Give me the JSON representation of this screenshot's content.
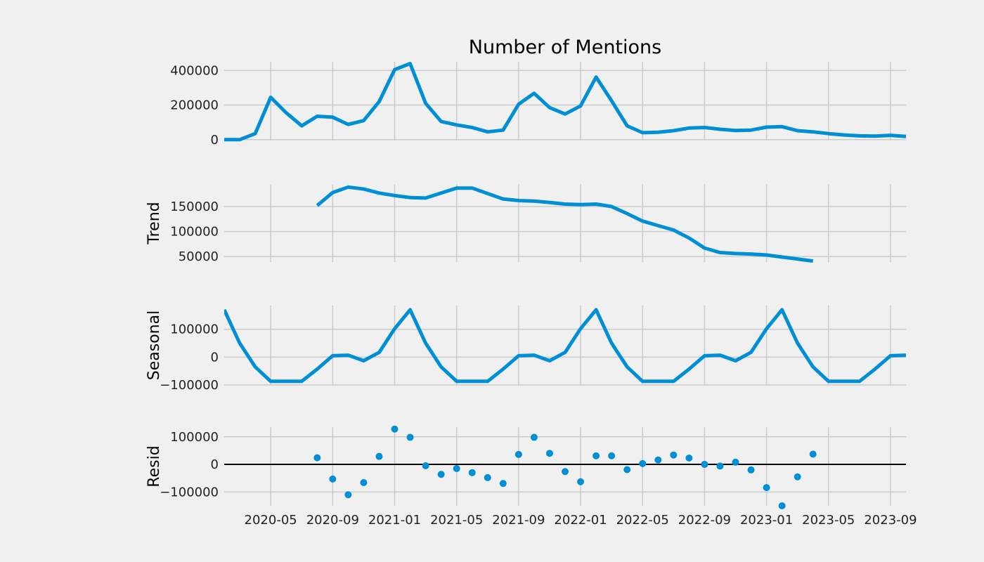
{
  "chart_data": {
    "type": "line",
    "title": "Number of Mentions",
    "x": [
      "2020-02",
      "2020-03",
      "2020-04",
      "2020-05",
      "2020-06",
      "2020-07",
      "2020-08",
      "2020-09",
      "2020-10",
      "2020-11",
      "2020-12",
      "2021-01",
      "2021-02",
      "2021-03",
      "2021-04",
      "2021-05",
      "2021-06",
      "2021-07",
      "2021-08",
      "2021-09",
      "2021-10",
      "2021-11",
      "2021-12",
      "2022-01",
      "2022-02",
      "2022-03",
      "2022-04",
      "2022-05",
      "2022-06",
      "2022-07",
      "2022-08",
      "2022-09",
      "2022-10",
      "2022-11",
      "2022-12",
      "2023-01",
      "2023-02",
      "2023-03",
      "2023-04",
      "2023-05",
      "2023-06",
      "2023-07",
      "2023-08",
      "2023-09",
      "2023-10"
    ],
    "x_ticks": [
      "2020-05",
      "2020-09",
      "2021-01",
      "2021-05",
      "2021-09",
      "2022-01",
      "2022-05",
      "2022-09",
      "2023-01",
      "2023-05",
      "2023-09"
    ],
    "line_color": "#008fd5",
    "panels": [
      {
        "name": "observed",
        "ylabel": "",
        "kind": "line",
        "ylim": [
          -5000,
          450000
        ],
        "yticks": [
          0,
          200000,
          400000
        ],
        "ytick_labels": [
          "0",
          "200000",
          "400000"
        ],
        "values": [
          0,
          0,
          35000,
          245000,
          155000,
          80000,
          135000,
          130000,
          88000,
          110000,
          220000,
          405000,
          440000,
          210000,
          105000,
          85000,
          70000,
          45000,
          55000,
          205000,
          268000,
          185000,
          148000,
          195000,
          362000,
          225000,
          80000,
          40000,
          43000,
          52000,
          67000,
          70000,
          60000,
          53000,
          55000,
          72000,
          75000,
          52000,
          45000,
          35000,
          27000,
          22000,
          20000,
          25000,
          18000
        ]
      },
      {
        "name": "trend",
        "ylabel": "Trend",
        "kind": "line",
        "ylim": [
          39000,
          195000
        ],
        "yticks": [
          50000,
          100000,
          150000
        ],
        "ytick_labels": [
          "50000",
          "100000",
          "150000"
        ],
        "values": [
          null,
          null,
          null,
          null,
          null,
          null,
          152000,
          178000,
          189000,
          185000,
          177000,
          172000,
          168000,
          167000,
          177000,
          187000,
          187000,
          176000,
          165000,
          162000,
          161000,
          158000,
          155000,
          154000,
          155000,
          150000,
          136000,
          121000,
          112000,
          103000,
          87000,
          67000,
          58000,
          56000,
          55000,
          53000,
          49000,
          45000,
          41000,
          null,
          null,
          null,
          null,
          null,
          null
        ]
      },
      {
        "name": "seasonal",
        "ylabel": "Seasonal",
        "kind": "line",
        "ylim": [
          -100000,
          185000
        ],
        "yticks": [
          -100000,
          0,
          100000
        ],
        "ytick_labels": [
          "−100000",
          "0",
          "100000"
        ],
        "values": [
          170000,
          50000,
          -35000,
          -87000,
          -87000,
          -87000,
          -43000,
          5000,
          7000,
          -13000,
          17000,
          102000,
          170000,
          50000,
          -35000,
          -87000,
          -87000,
          -87000,
          -43000,
          5000,
          7000,
          -13000,
          17000,
          102000,
          170000,
          50000,
          -35000,
          -87000,
          -87000,
          -87000,
          -43000,
          5000,
          7000,
          -13000,
          17000,
          102000,
          170000,
          50000,
          -35000,
          -87000,
          -87000,
          -87000,
          -43000,
          5000,
          7000
        ]
      },
      {
        "name": "resid",
        "ylabel": "Resid",
        "kind": "scatter",
        "ylim": [
          -150000,
          135000
        ],
        "yticks": [
          -100000,
          0,
          100000
        ],
        "ytick_labels": [
          "−100000",
          "0",
          "100000"
        ],
        "values": [
          null,
          null,
          null,
          null,
          null,
          null,
          24000,
          -53000,
          -110000,
          -66000,
          29000,
          128000,
          98000,
          -5000,
          -36000,
          -15000,
          -30000,
          -48000,
          -69000,
          36000,
          98000,
          40000,
          -26000,
          -63000,
          31000,
          31000,
          -19000,
          3000,
          16000,
          34000,
          23000,
          0,
          -6000,
          8000,
          -20000,
          -84000,
          -150000,
          -45000,
          37000,
          null,
          null,
          null,
          null,
          null,
          null
        ]
      }
    ]
  }
}
